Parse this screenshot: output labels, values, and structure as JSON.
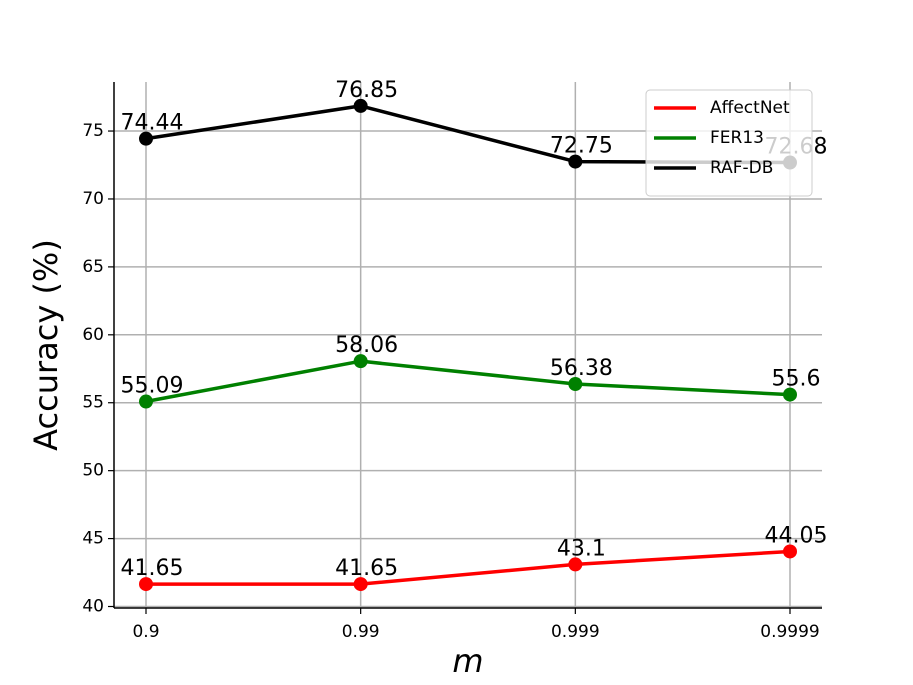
{
  "chart_data": {
    "type": "line",
    "x_label": "m",
    "y_label": "Accuracy (%)",
    "categories": [
      "0.9",
      "0.99",
      "0.999",
      "0.9999"
    ],
    "series": [
      {
        "name": "AffectNet",
        "color": "#ff0000",
        "values": [
          41.65,
          41.65,
          43.1,
          44.05
        ]
      },
      {
        "name": "FER13",
        "color": "#008000",
        "values": [
          55.09,
          58.06,
          56.38,
          55.6
        ]
      },
      {
        "name": "RAF-DB",
        "color": "#000000",
        "values": [
          74.44,
          76.85,
          72.75,
          72.68
        ]
      }
    ],
    "ylim": [
      39.89,
      78.61
    ],
    "yticks": [
      40,
      45,
      50,
      55,
      60,
      65,
      70,
      75
    ],
    "grid": true,
    "legend": "upper right"
  }
}
